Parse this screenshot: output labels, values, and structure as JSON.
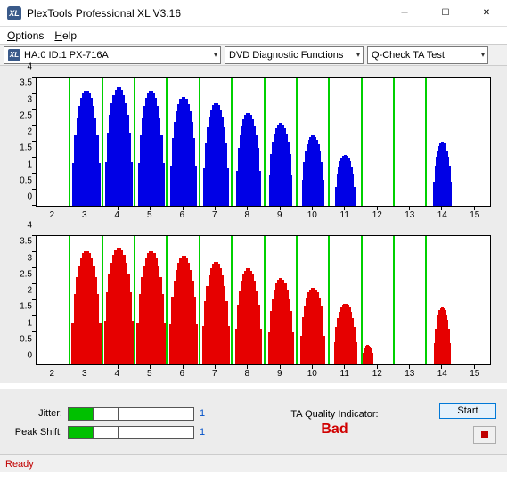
{
  "window": {
    "title": "PlexTools Professional XL V3.16",
    "icon_text": "XL"
  },
  "menu": {
    "options": "Options",
    "help": "Help"
  },
  "toolbar": {
    "drive": "HA:0 ID:1   PX-716A",
    "func": "DVD Diagnostic Functions",
    "test": "Q-Check TA Test"
  },
  "chart": {
    "yticks": [
      "0",
      "0.5",
      "1",
      "1.5",
      "2",
      "2.5",
      "3",
      "3.5",
      "4"
    ],
    "ymax": 4,
    "xticks": [
      "2",
      "3",
      "4",
      "5",
      "6",
      "7",
      "8",
      "9",
      "10",
      "11",
      "12",
      "13",
      "14",
      "15"
    ],
    "xmin": 1.5,
    "xmax": 15.5,
    "gridlines": [
      2.5,
      3.5,
      4.5,
      5.5,
      6.5,
      7.5,
      8.5,
      9.5,
      10.5,
      11.5,
      12.5,
      13.5
    ],
    "top_color": "#0000e6",
    "bot_color": "#e60000",
    "top_humps": [
      {
        "c": 3,
        "h": 3.6,
        "w": 0.85
      },
      {
        "c": 4,
        "h": 3.7,
        "w": 0.85
      },
      {
        "c": 5,
        "h": 3.6,
        "w": 0.8
      },
      {
        "c": 6,
        "h": 3.4,
        "w": 0.8
      },
      {
        "c": 7,
        "h": 3.2,
        "w": 0.78
      },
      {
        "c": 8,
        "h": 2.9,
        "w": 0.75
      },
      {
        "c": 9,
        "h": 2.6,
        "w": 0.72
      },
      {
        "c": 10,
        "h": 2.2,
        "w": 0.68
      },
      {
        "c": 11,
        "h": 1.6,
        "w": 0.6
      },
      {
        "c": 14,
        "h": 2.0,
        "w": 0.55
      }
    ],
    "bot_humps": [
      {
        "c": 3,
        "h": 3.55,
        "w": 0.9
      },
      {
        "c": 4,
        "h": 3.65,
        "w": 0.9
      },
      {
        "c": 5,
        "h": 3.55,
        "w": 0.88
      },
      {
        "c": 6,
        "h": 3.4,
        "w": 0.85
      },
      {
        "c": 7,
        "h": 3.2,
        "w": 0.82
      },
      {
        "c": 8,
        "h": 3.0,
        "w": 0.8
      },
      {
        "c": 9,
        "h": 2.7,
        "w": 0.78
      },
      {
        "c": 10,
        "h": 2.4,
        "w": 0.75
      },
      {
        "c": 11,
        "h": 1.9,
        "w": 0.7
      },
      {
        "c": 11.7,
        "h": 0.6,
        "w": 0.35
      },
      {
        "c": 14,
        "h": 1.8,
        "w": 0.5
      }
    ]
  },
  "metrics": {
    "jitter": {
      "label": "Jitter:",
      "value": "1",
      "filled": 1
    },
    "peak": {
      "label": "Peak Shift:",
      "value": "1",
      "filled": 1
    }
  },
  "quality": {
    "label": "TA Quality Indicator:",
    "value": "Bad",
    "color": "#d00000"
  },
  "buttons": {
    "start": "Start"
  },
  "status": "Ready"
}
